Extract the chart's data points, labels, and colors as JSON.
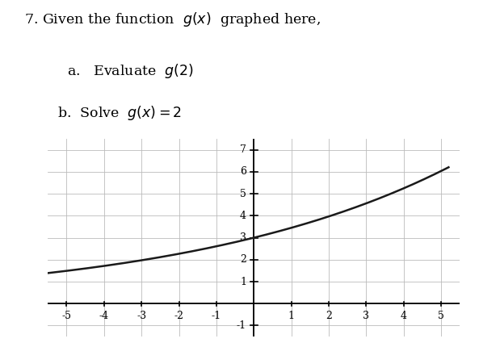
{
  "title_line1": "7. Given the function  $g(x)$  graphed here,",
  "title_line2a": "a.   Evaluate  $g(2)$",
  "title_line2b": "b.  Solve  $g(x)=2$",
  "xlim": [
    -5.5,
    5.5
  ],
  "ylim": [
    -1.5,
    7.5
  ],
  "xticks": [
    -5,
    -4,
    -3,
    -2,
    -1,
    1,
    2,
    3,
    4,
    5
  ],
  "yticks": [
    -1,
    1,
    2,
    3,
    4,
    5,
    6,
    7
  ],
  "curve_base": 3.0,
  "curve_growth": 1.15,
  "x_start": -5.5,
  "x_end": 5.2,
  "curve_color": "#1a1a1a",
  "grid_color": "#bbbbbb",
  "background_color": "#ffffff",
  "text_color": "#000000",
  "axis_color": "#000000"
}
